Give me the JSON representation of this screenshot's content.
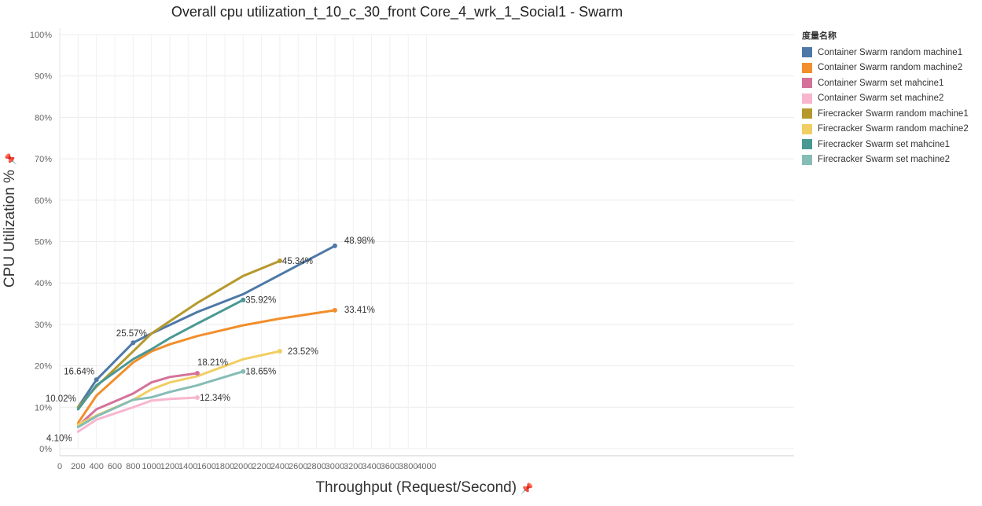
{
  "chart_data": {
    "type": "line",
    "title": "Overall cpu utilization_t_10_c_30_front Core_4_wrk_1_Social1 - Swarm",
    "xlabel": "Throughput (Request/Second)",
    "ylabel": "CPU Utilization %",
    "xlim": [
      0,
      4000
    ],
    "ylim": [
      0,
      100
    ],
    "x_ticks": [
      0,
      200,
      400,
      600,
      800,
      1000,
      1200,
      1400,
      1600,
      1800,
      2000,
      2200,
      2400,
      2600,
      2800,
      3000,
      3200,
      3400,
      3600,
      3800,
      4000
    ],
    "x_tick_labels": [
      "0",
      "200",
      "400",
      "600",
      "800",
      "1000",
      "1200",
      "1400",
      "1600",
      "1800",
      "2000",
      "2200",
      "2400",
      "2600",
      "2800",
      "3000",
      "3200",
      "3400",
      "3600",
      "3800",
      "4000"
    ],
    "y_ticks": [
      0,
      10,
      20,
      30,
      40,
      50,
      60,
      70,
      80,
      90,
      100
    ],
    "y_tick_labels": [
      "0%",
      "10%",
      "20%",
      "30%",
      "40%",
      "50%",
      "60%",
      "70%",
      "80%",
      "90%",
      "100%"
    ],
    "grid": true,
    "legend_title": "度量名称",
    "legend_position": "right",
    "series": [
      {
        "name": "Container Swarm random machine1",
        "color": "#4e79a7",
        "x": [
          200,
          400,
          800,
          1000,
          1500,
          2000,
          3000
        ],
        "y": [
          10.02,
          16.64,
          25.57,
          27.8,
          33.0,
          37.3,
          48.98
        ]
      },
      {
        "name": "Container Swarm random machine2",
        "color": "#f28e2b",
        "x": [
          200,
          400,
          800,
          1000,
          1200,
          1500,
          2000,
          2400,
          3000
        ],
        "y": [
          6.2,
          12.8,
          20.8,
          23.5,
          25.2,
          27.2,
          29.8,
          31.4,
          33.41
        ]
      },
      {
        "name": "Container Swarm set mahcine1",
        "color": "#d4729a",
        "x": [
          200,
          400,
          800,
          1000,
          1200,
          1500
        ],
        "y": [
          5.5,
          9.5,
          13.3,
          16.0,
          17.3,
          18.21
        ]
      },
      {
        "name": "Container Swarm set machine2",
        "color": "#f8b6ce",
        "x": [
          200,
          400,
          800,
          1000,
          1200,
          1500
        ],
        "y": [
          4.1,
          7.0,
          10.0,
          11.6,
          12.0,
          12.34
        ]
      },
      {
        "name": "Firecracker Swarm random machine1",
        "color": "#b6992d",
        "x": [
          200,
          400,
          800,
          1000,
          1200,
          1500,
          2000,
          2400
        ],
        "y": [
          10.0,
          15.0,
          23.5,
          27.8,
          30.8,
          35.2,
          41.7,
          45.34
        ]
      },
      {
        "name": "Firecracker Swarm random machine2",
        "color": "#f1ce63",
        "x": [
          200,
          400,
          800,
          1000,
          1200,
          1500,
          2000,
          2400
        ],
        "y": [
          5.8,
          8.0,
          11.8,
          14.3,
          16.0,
          17.5,
          21.6,
          23.52
        ]
      },
      {
        "name": "Firecracker Swarm set mahcine1",
        "color": "#499894",
        "x": [
          200,
          400,
          800,
          1000,
          1200,
          1500,
          2000
        ],
        "y": [
          9.5,
          15.3,
          21.6,
          24.0,
          26.7,
          30.2,
          35.92
        ]
      },
      {
        "name": "Firecracker Swarm set machine2",
        "color": "#86bcb6",
        "x": [
          200,
          400,
          800,
          1000,
          1200,
          1500,
          2000
        ],
        "y": [
          5.2,
          7.8,
          11.8,
          12.4,
          13.7,
          15.3,
          18.65
        ]
      }
    ],
    "annotations": [
      {
        "text": "48.98%",
        "x": 3000,
        "y": 48.98,
        "series": 0
      },
      {
        "text": "25.57%",
        "x": 800,
        "y": 25.57,
        "series": 0
      },
      {
        "text": "16.64%",
        "x": 400,
        "y": 16.64,
        "series": 0
      },
      {
        "text": "10.02%",
        "x": 200,
        "y": 10.02,
        "series": 0
      },
      {
        "text": "33.41%",
        "x": 3000,
        "y": 33.41,
        "series": 1
      },
      {
        "text": "18.21%",
        "x": 1500,
        "y": 18.21,
        "series": 2
      },
      {
        "text": "12.34%",
        "x": 1500,
        "y": 12.34,
        "series": 3
      },
      {
        "text": "4.10%",
        "x": 200,
        "y": 4.1,
        "series": 3
      },
      {
        "text": "45.34%",
        "x": 2400,
        "y": 45.34,
        "series": 4
      },
      {
        "text": "23.52%",
        "x": 2400,
        "y": 23.52,
        "series": 5
      },
      {
        "text": "35.92%",
        "x": 2000,
        "y": 35.92,
        "series": 6
      },
      {
        "text": "18.65%",
        "x": 2000,
        "y": 18.65,
        "series": 7
      }
    ]
  }
}
